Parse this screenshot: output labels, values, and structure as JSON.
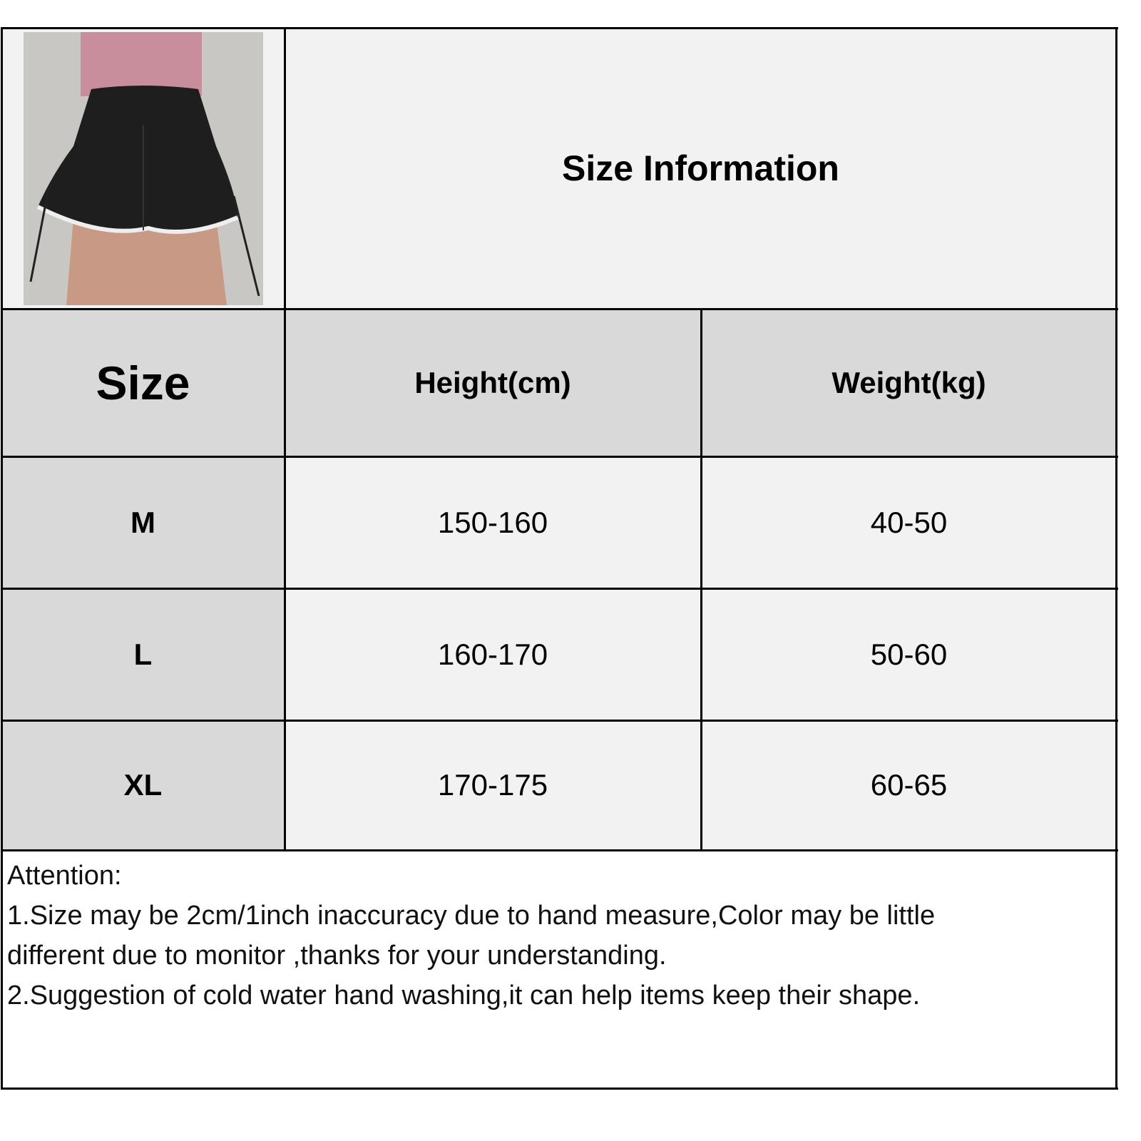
{
  "title": "Size Information",
  "photo": {
    "alt": "black drawstring shorts, back view"
  },
  "headers": [
    "Size",
    "Height(cm)",
    "Weight(kg)"
  ],
  "rows": [
    {
      "size": "M",
      "height": "150-160",
      "weight": "40-50"
    },
    {
      "size": "L",
      "height": "160-170",
      "weight": "50-60"
    },
    {
      "size": "XL",
      "height": "170-175",
      "weight": "60-65"
    }
  ],
  "notes": {
    "heading": "Attention:",
    "line1": "1.Size may be 2cm/1inch inaccuracy due to hand measure,Color may be little",
    "line2": "different due to monitor ,thanks for your understanding.",
    "line3": "2.Suggestion of cold water hand washing,it can help items keep their shape."
  },
  "colors": {
    "header_bg": "#d9d9d9",
    "cell_bg": "#f2f2f2",
    "border": "#000000"
  }
}
